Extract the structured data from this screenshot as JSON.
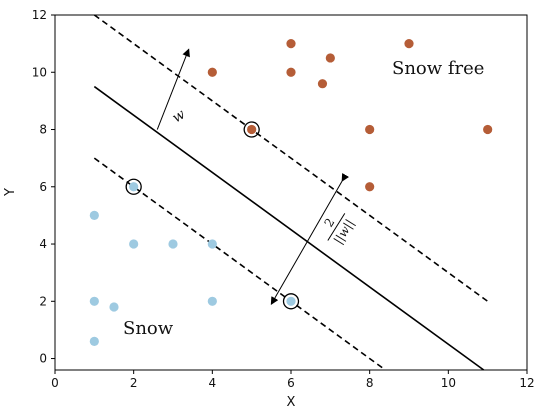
{
  "chart_data": {
    "type": "scatter",
    "xlabel": "X",
    "ylabel": "Y",
    "xlim": [
      0,
      12
    ],
    "ylim": [
      -0.4,
      12
    ],
    "xticks": [
      0,
      2,
      4,
      6,
      8,
      10,
      12
    ],
    "yticks": [
      0,
      2,
      4,
      6,
      8,
      10,
      12
    ],
    "grid": false,
    "series": [
      {
        "class": "snow",
        "color": "#9ecae1",
        "points": [
          [
            1,
            5
          ],
          [
            1,
            2
          ],
          [
            1,
            0.6
          ],
          [
            1.5,
            1.8
          ],
          [
            2,
            6
          ],
          [
            2,
            4
          ],
          [
            3,
            4
          ],
          [
            4,
            4
          ],
          [
            4,
            2
          ],
          [
            6,
            2
          ]
        ]
      },
      {
        "class": "snow_free",
        "color": "#b55d37",
        "points": [
          [
            4,
            10
          ],
          [
            5,
            8
          ],
          [
            6,
            11
          ],
          [
            6,
            10
          ],
          [
            6.8,
            9.6
          ],
          [
            7,
            10.5
          ],
          [
            8,
            8
          ],
          [
            8,
            6
          ],
          [
            9,
            11
          ],
          [
            11,
            8
          ]
        ]
      }
    ],
    "support_vectors": [
      [
        5,
        8
      ],
      [
        2,
        6
      ],
      [
        6,
        2
      ]
    ],
    "lines": [
      {
        "role": "upper-margin",
        "style": "dashed",
        "x": [
          1,
          11
        ],
        "y": [
          12,
          2
        ]
      },
      {
        "role": "decision-boundary",
        "style": "solid",
        "x": [
          1,
          10.9
        ],
        "y": [
          9.5,
          -0.4
        ]
      },
      {
        "role": "lower-margin",
        "style": "dashed",
        "x": [
          1,
          8.4
        ],
        "y": [
          7,
          -0.4
        ]
      }
    ],
    "annotations": {
      "region_snow_free": "Snow free",
      "region_snow": "Snow",
      "w_label": "w",
      "margin_numerator": "2",
      "margin_denominator": "||w||",
      "w_arrow": {
        "from": [
          2.6,
          8.0
        ],
        "to": [
          3.4,
          10.8
        ]
      },
      "margin_arrow": {
        "from": [
          7.3,
          6.2
        ],
        "to": [
          5.5,
          1.9
        ]
      }
    },
    "colors": {
      "snow": "#9ecae1",
      "snow_free": "#b55d37",
      "line": "#000000"
    }
  }
}
